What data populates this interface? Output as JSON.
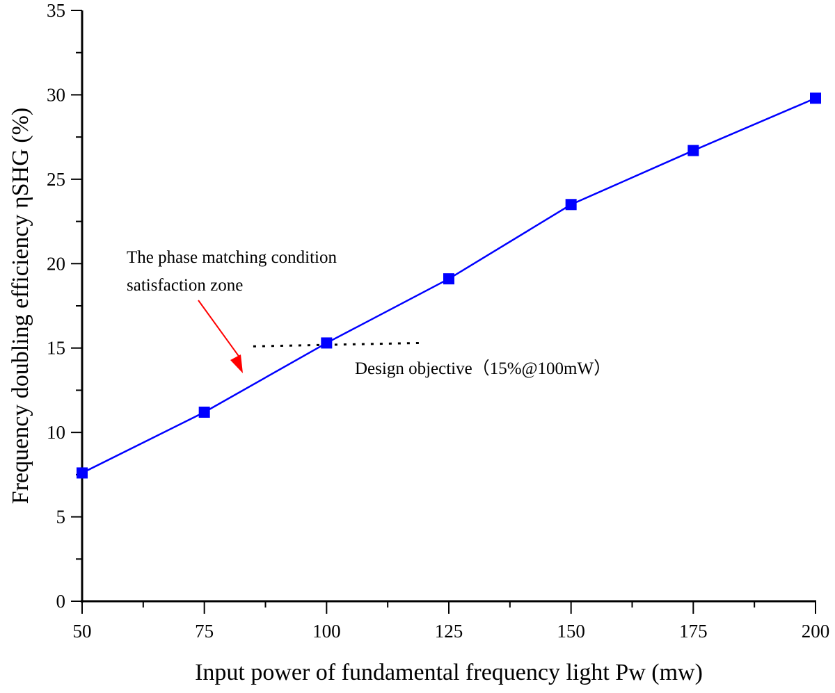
{
  "chart_data": {
    "type": "line",
    "title": "",
    "xlabel": "Input power of fundamental frequency light Pw (mw)",
    "ylabel": "Frequency doubling efficiency ηSHG (%)",
    "xlim": [
      50,
      200
    ],
    "ylim": [
      0,
      35
    ],
    "xticks": [
      50,
      75,
      100,
      125,
      150,
      175,
      200
    ],
    "yticks": [
      0,
      5,
      10,
      15,
      20,
      25,
      30,
      35
    ],
    "grid": false,
    "series": [
      {
        "x": [
          50,
          75,
          100,
          125,
          150,
          175,
          200
        ],
        "y": [
          7.6,
          11.2,
          15.3,
          19.1,
          23.5,
          26.7,
          29.8
        ],
        "color": "#0000ff",
        "marker": "square"
      }
    ],
    "reference_line": {
      "x": [
        85,
        119
      ],
      "y": [
        15.1,
        15.3
      ],
      "style": "dotted",
      "color": "#000000"
    },
    "annotations": [
      {
        "text_lines": [
          "The phase matching condition",
          "satisfaction zone"
        ],
        "arrow_color": "#ff0000"
      },
      {
        "text": "Design objective（15%@100mW）"
      }
    ]
  }
}
